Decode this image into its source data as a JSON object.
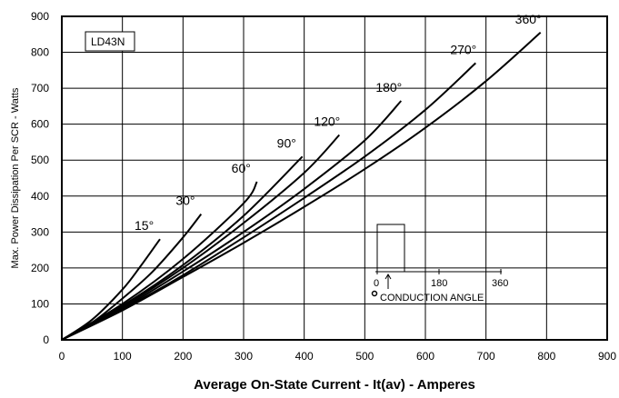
{
  "chart_data": {
    "type": "line",
    "title": "",
    "xlabel": "Average On-State Current - It(av) - Amperes",
    "ylabel": "Max. Power Dissipation Per SCR - Watts",
    "xlim": [
      0,
      900
    ],
    "ylim": [
      0,
      900
    ],
    "xticks": [
      0,
      100,
      200,
      300,
      400,
      500,
      600,
      700,
      800,
      900
    ],
    "yticks": [
      0,
      100,
      200,
      300,
      400,
      500,
      600,
      700,
      800,
      900
    ],
    "grid": true,
    "device_label": "LD43N",
    "series": [
      {
        "name": "15°",
        "x": [
          0,
          50,
          100,
          130,
          162
        ],
        "y": [
          0,
          56,
          140,
          205,
          280
        ]
      },
      {
        "name": "30°",
        "x": [
          0,
          50,
          100,
          150,
          200,
          230
        ],
        "y": [
          0,
          48,
          115,
          190,
          285,
          350
        ]
      },
      {
        "name": "60°",
        "x": [
          0,
          100,
          200,
          300,
          322
        ],
        "y": [
          0,
          100,
          225,
          380,
          440
        ]
      },
      {
        "name": "90°",
        "x": [
          0,
          100,
          200,
          300,
          397
        ],
        "y": [
          0,
          95,
          208,
          345,
          510
        ]
      },
      {
        "name": "120°",
        "x": [
          0,
          100,
          200,
          300,
          400,
          458
        ],
        "y": [
          0,
          92,
          200,
          325,
          465,
          570
        ]
      },
      {
        "name": "180°",
        "x": [
          0,
          100,
          200,
          300,
          400,
          500,
          560
        ],
        "y": [
          0,
          88,
          190,
          300,
          420,
          555,
          665
        ]
      },
      {
        "name": "270°",
        "x": [
          0,
          100,
          200,
          300,
          400,
          500,
          600,
          683
        ],
        "y": [
          0,
          85,
          180,
          285,
          395,
          510,
          640,
          770
        ]
      },
      {
        "name": "360°",
        "x": [
          0,
          100,
          200,
          300,
          400,
          500,
          600,
          700,
          790
        ],
        "y": [
          0,
          82,
          175,
          270,
          370,
          475,
          590,
          720,
          855
        ]
      }
    ],
    "annotations": {
      "inset_ticks": [
        "0",
        "180",
        "360"
      ],
      "inset_caption": "CONDUCTION ANGLE"
    }
  }
}
